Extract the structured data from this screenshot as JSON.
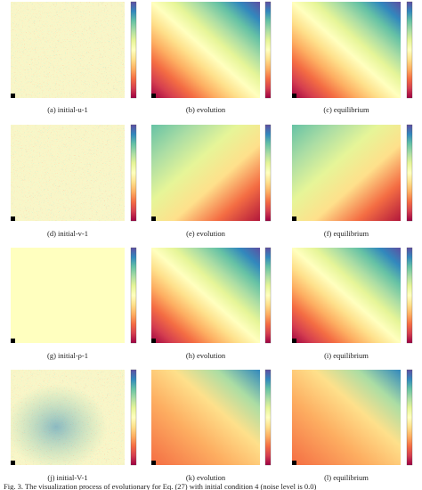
{
  "panels": [
    {
      "caption": "(a) initial-u-1"
    },
    {
      "caption": "(b) evolution"
    },
    {
      "caption": "(c) equilibrium"
    },
    {
      "caption": "(d) initial-v-1"
    },
    {
      "caption": "(e) evolution"
    },
    {
      "caption": "(f) equilibrium"
    },
    {
      "caption": "(g) initial-ρ-1"
    },
    {
      "caption": "(h) evolution"
    },
    {
      "caption": "(i) equilibrium"
    },
    {
      "caption": "(j) initial-V-1"
    },
    {
      "caption": "(k) evolution"
    },
    {
      "caption": "(l) equilibrium"
    }
  ],
  "figure_caption": "Fig. 3.   The visualization process of evolutionary for Eq. (27) with initial condition 4 (noise level is 0.0)"
}
